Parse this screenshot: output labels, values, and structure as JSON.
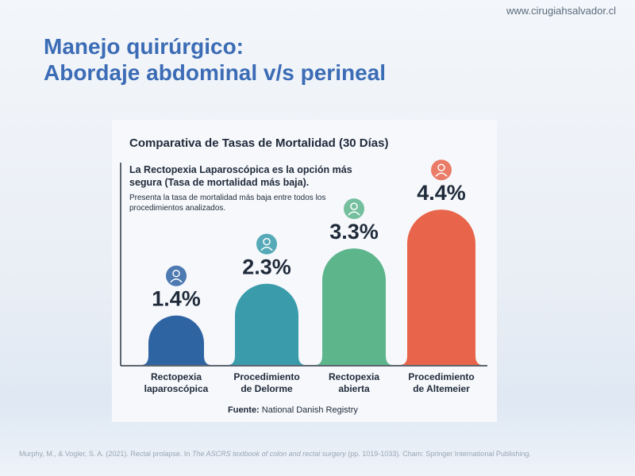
{
  "slide": {
    "website": "www.cirugiahsalvador.cl",
    "title_line1": "Manejo quirúrgico:",
    "title_line2": "Abordaje abdominal v/s perineal",
    "citation_before": "Murphy, M., & Vogler, S. A. (2021). Rectal prolapse. In ",
    "citation_italic": "The ASCRS textbook of colon and rectal surgery",
    "citation_after": " (pp. 1019-1033). Cham: Springer International Publishing."
  },
  "chart_data": {
    "type": "bar",
    "title": "Comparativa de Tasas de Mortalidad (30 Días)",
    "headline": "La Rectopexia Laparoscópica es la opción más segura (Tasa de mortalidad más baja).",
    "subtitle": "Presenta la tasa de mortalidad más baja entre todos los procedimientos analizados.",
    "categories": [
      "Rectopexia laparoscópica",
      "Procedimiento de Delorme",
      "Rectopexia abierta",
      "Procedimiento de Altemeier"
    ],
    "values": [
      1.4,
      2.3,
      3.3,
      4.4
    ],
    "value_labels": [
      "1.4%",
      "2.3%",
      "3.3%",
      "4.4%"
    ],
    "colors": [
      "#2f64a3",
      "#3a9cab",
      "#5db58c",
      "#e8654b"
    ],
    "source_label": "Fuente:",
    "source": "National Danish Registry"
  }
}
